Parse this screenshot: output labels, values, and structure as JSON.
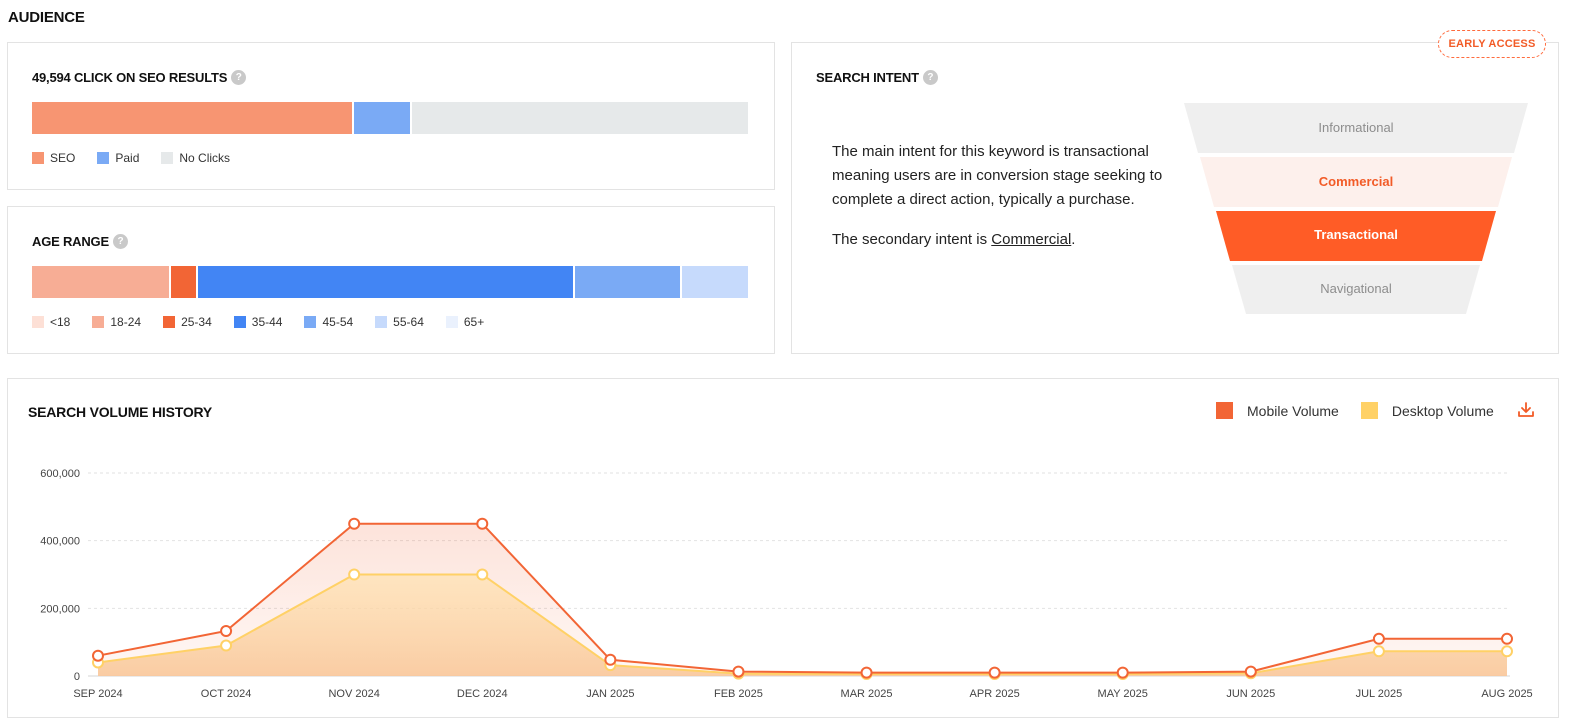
{
  "page": {
    "section_title": "AUDIENCE"
  },
  "clicks_card": {
    "title": "49,594 CLICK ON SEO RESULTS",
    "help": "?",
    "bar": [
      {
        "name": "SEO",
        "share": 0.45,
        "color": "#f79572"
      },
      {
        "name": "Paid",
        "share": 0.078,
        "color": "#7aaaf5"
      },
      {
        "name": "No Clicks",
        "share": 0.472,
        "color": "#e6e9ea"
      }
    ],
    "legend": [
      {
        "label": "SEO",
        "color": "#f79572"
      },
      {
        "label": "Paid",
        "color": "#7aaaf5"
      },
      {
        "label": "No Clicks",
        "color": "#e6e9ea"
      }
    ]
  },
  "age_card": {
    "title": "AGE RANGE",
    "help": "?",
    "bar": [
      {
        "name": "18-24",
        "share": 0.193,
        "color": "#f7ad95"
      },
      {
        "name": "25-34",
        "share": 0.036,
        "color": "#f26535"
      },
      {
        "name": "35-44",
        "share": 0.529,
        "color": "#4285f4"
      },
      {
        "name": "45-54",
        "share": 0.149,
        "color": "#7aaaf5"
      },
      {
        "name": "55-64",
        "share": 0.093,
        "color": "#c6dafc"
      }
    ],
    "legend": [
      {
        "label": "<18",
        "color": "#fde0d6"
      },
      {
        "label": "18-24",
        "color": "#f7ad95"
      },
      {
        "label": "25-34",
        "color": "#f26535"
      },
      {
        "label": "35-44",
        "color": "#4285f4"
      },
      {
        "label": "45-54",
        "color": "#7aaaf5"
      },
      {
        "label": "55-64",
        "color": "#c6dafc"
      },
      {
        "label": "65+",
        "color": "#eaf1fd"
      }
    ]
  },
  "intent_card": {
    "title": "SEARCH INTENT",
    "help": "?",
    "badge": "EARLY ACCESS",
    "description": "The main intent for this keyword is transactional meaning users are in conversion stage seeking to complete a direct action, typically a purchase.",
    "secondary_prefix": "The secondary intent is ",
    "secondary_link": "Commercial",
    "secondary_suffix": ".",
    "funnel": [
      {
        "label": "Informational",
        "state": "inactive"
      },
      {
        "label": "Commercial",
        "state": "secondary"
      },
      {
        "label": "Transactional",
        "state": "primary"
      },
      {
        "label": "Navigational",
        "state": "inactive"
      }
    ]
  },
  "volume_card": {
    "title": "SEARCH VOLUME HISTORY",
    "legend": [
      {
        "label": "Mobile Volume",
        "color": "#f26535"
      },
      {
        "label": "Desktop Volume",
        "color": "#ffd166"
      }
    ],
    "download_icon": "download-icon"
  },
  "chart_data": {
    "type": "area",
    "categories": [
      "SEP 2024",
      "OCT 2024",
      "NOV 2024",
      "DEC 2024",
      "JAN 2025",
      "FEB 2025",
      "MAR 2025",
      "APR 2025",
      "MAY 2025",
      "JUN 2025",
      "JUL 2025",
      "AUG 2025"
    ],
    "series": [
      {
        "name": "Mobile Volume",
        "color": "#f26535",
        "values": [
          60000,
          133000,
          450000,
          450000,
          48000,
          13000,
          10000,
          10000,
          10000,
          13000,
          110000,
          110000
        ]
      },
      {
        "name": "Desktop Volume",
        "color": "#ffd166",
        "values": [
          40000,
          90000,
          300000,
          300000,
          32000,
          7000,
          6000,
          6000,
          6000,
          8000,
          73000,
          73000
        ]
      }
    ],
    "yticks": [
      "0",
      "200,000",
      "400,000",
      "600,000"
    ],
    "ylim": [
      0,
      600000
    ],
    "grid": true
  }
}
